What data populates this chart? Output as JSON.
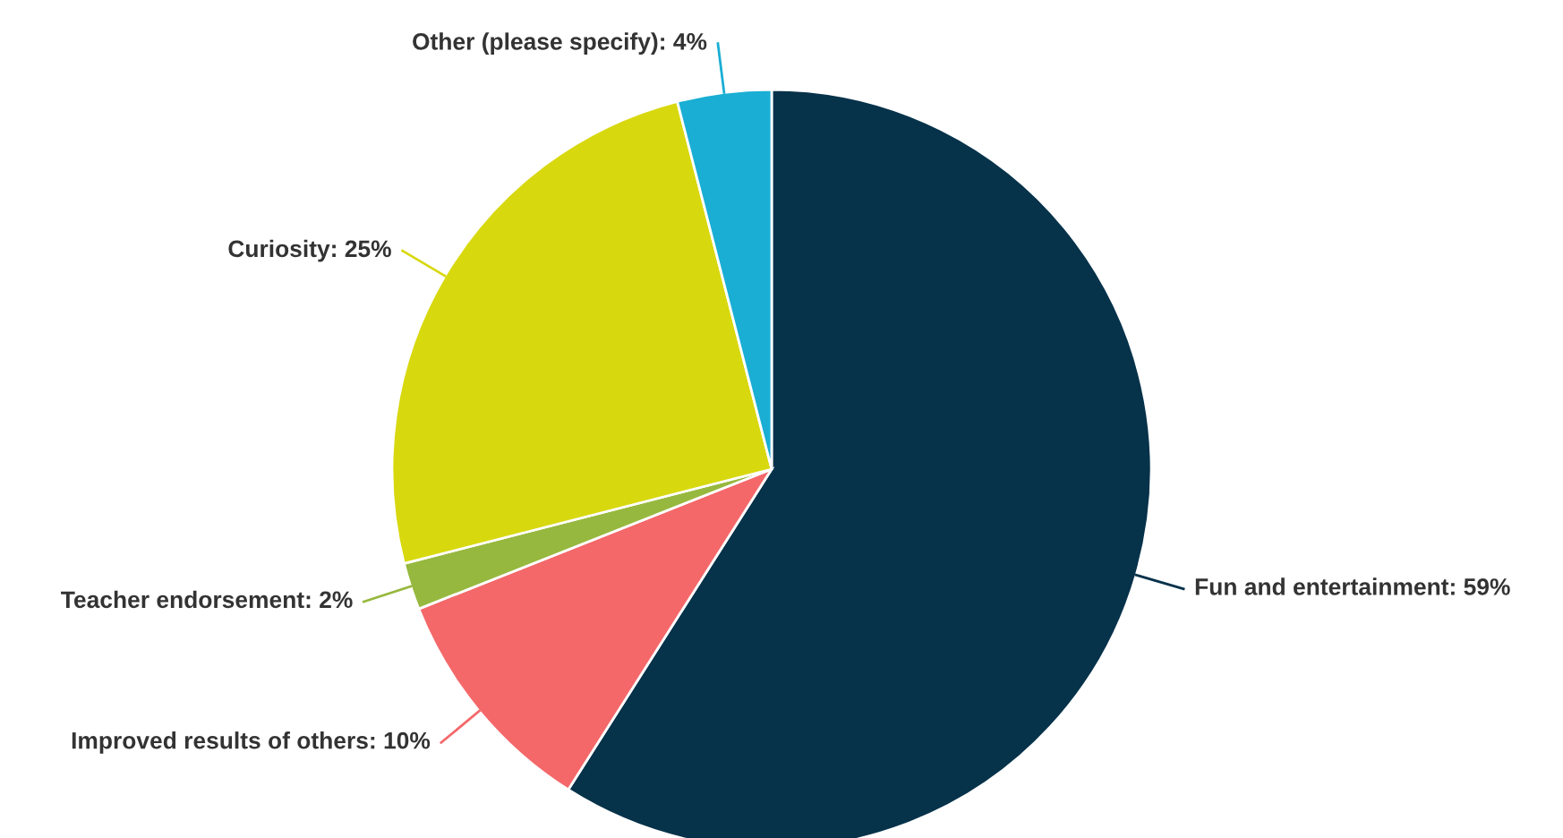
{
  "chart_data": {
    "type": "pie",
    "categories": [
      "Fun and entertainment: 59%",
      "Improved results of others: 10%",
      "Teacher endorsement: 2%",
      "Curiosity: 25%",
      "Other (please specify): 4%"
    ],
    "values": [
      59,
      10,
      2,
      25,
      4
    ],
    "colors": [
      "#06324a",
      "#f4686a",
      "#97b83e",
      "#d8d80f",
      "#1aaed4"
    ]
  }
}
